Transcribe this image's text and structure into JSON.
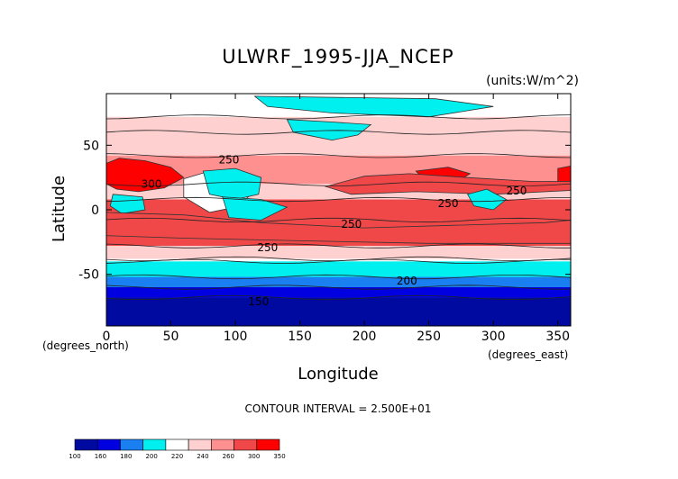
{
  "chart_data": {
    "type": "heatmap",
    "title": "ULWRF_1995-JJA_NCEP",
    "units_label": "(units:W/m^2)",
    "xlabel": "Longitude",
    "ylabel": "Latitude",
    "x_unit_label": "(degrees_east)",
    "y_unit_label": "(degrees_north)",
    "xlim": [
      0,
      360
    ],
    "ylim": [
      -90,
      90
    ],
    "x_ticks": [
      "0",
      "50",
      "100",
      "150",
      "200",
      "250",
      "300",
      "350"
    ],
    "y_ticks": [
      "-50",
      "0",
      "50"
    ],
    "contour_interval_text": "CONTOUR INTERVAL = 2.500E+01",
    "contour_labels": [
      {
        "text": "250",
        "lon": 95,
        "lat": 36
      },
      {
        "text": "300",
        "lon": 35,
        "lat": 17
      },
      {
        "text": "250",
        "lon": 318,
        "lat": 12
      },
      {
        "text": "250",
        "lon": 265,
        "lat": 2
      },
      {
        "text": "250",
        "lon": 190,
        "lat": -14
      },
      {
        "text": "250",
        "lon": 125,
        "lat": -32
      },
      {
        "text": "200",
        "lon": 233,
        "lat": -58
      },
      {
        "text": "150",
        "lon": 118,
        "lat": -74
      }
    ],
    "colorbar": {
      "labels": [
        "100",
        "160",
        "180",
        "200",
        "220",
        "240",
        "260",
        "300",
        "350"
      ],
      "colors": [
        "#000aa0",
        "#0000e0",
        "#1a7ff0",
        "#00f0f0",
        "#ffffff",
        "#ffd0d0",
        "#ff9090",
        "#f04848",
        "#ff0000"
      ]
    },
    "latitude_bands": [
      {
        "lat": [
          72,
          90
        ],
        "color": "#ffffff"
      },
      {
        "lat": [
          60,
          72
        ],
        "color": "#ffd0d0"
      },
      {
        "lat": [
          42,
          60
        ],
        "color": "#ffd0d0"
      },
      {
        "lat": [
          20,
          42
        ],
        "color": "#ff9090"
      },
      {
        "lat": [
          8,
          20
        ],
        "color": "#ffd0d0"
      },
      {
        "lat": [
          -8,
          8
        ],
        "color": "#f04848"
      },
      {
        "lat": [
          -28,
          -8
        ],
        "color": "#f04848"
      },
      {
        "lat": [
          -38,
          -28
        ],
        "color": "#ffd0d0"
      },
      {
        "lat": [
          -40,
          -38
        ],
        "color": "#ffffff"
      },
      {
        "lat": [
          -52,
          -40
        ],
        "color": "#00f0f0"
      },
      {
        "lat": [
          -60,
          -52
        ],
        "color": "#1a7ff0"
      },
      {
        "lat": [
          -68,
          -60
        ],
        "color": "#0000e0"
      },
      {
        "lat": [
          -90,
          -68
        ],
        "color": "#000aa0"
      }
    ],
    "regions": [
      {
        "name": "north-pacific-cool",
        "color": "#00f0f0",
        "pts": [
          [
            140,
            70
          ],
          [
            175,
            68
          ],
          [
            205,
            66
          ],
          [
            195,
            58
          ],
          [
            175,
            54
          ],
          [
            160,
            57
          ],
          [
            145,
            60
          ]
        ]
      },
      {
        "name": "arctic-cyan",
        "color": "#00f0f0",
        "pts": [
          [
            115,
            88
          ],
          [
            255,
            86
          ],
          [
            300,
            80
          ],
          [
            250,
            72
          ],
          [
            175,
            75
          ],
          [
            125,
            80
          ]
        ]
      },
      {
        "name": "sahara-hot",
        "color": "#ff0000",
        "pts": [
          [
            0,
            36
          ],
          [
            10,
            40
          ],
          [
            30,
            38
          ],
          [
            50,
            33
          ],
          [
            60,
            25
          ],
          [
            45,
            17
          ],
          [
            25,
            14
          ],
          [
            8,
            16
          ],
          [
            0,
            20
          ]
        ]
      },
      {
        "name": "hot-n-america",
        "color": "#ff0000",
        "pts": [
          [
            240,
            30
          ],
          [
            265,
            33
          ],
          [
            282,
            28
          ],
          [
            272,
            22
          ],
          [
            250,
            20
          ]
        ]
      },
      {
        "name": "hot-east-asia",
        "color": "#ff0000",
        "pts": [
          [
            350,
            32
          ],
          [
            360,
            34
          ],
          [
            360,
            18
          ],
          [
            350,
            20
          ]
        ]
      },
      {
        "name": "nh-warm-band",
        "color": "#f04848",
        "pts": [
          [
            170,
            18
          ],
          [
            200,
            26
          ],
          [
            235,
            28
          ],
          [
            280,
            25
          ],
          [
            330,
            22
          ],
          [
            360,
            22
          ],
          [
            360,
            15
          ],
          [
            300,
            12
          ],
          [
            240,
            14
          ],
          [
            190,
            12
          ]
        ]
      },
      {
        "name": "monsoon-asia",
        "color": "#ffffff",
        "pts": [
          [
            60,
            24
          ],
          [
            80,
            30
          ],
          [
            100,
            25
          ],
          [
            110,
            10
          ],
          [
            100,
            2
          ],
          [
            80,
            -2
          ],
          [
            60,
            10
          ]
        ]
      },
      {
        "name": "tibet-cyan",
        "color": "#00f0f0",
        "pts": [
          [
            75,
            30
          ],
          [
            100,
            32
          ],
          [
            120,
            25
          ],
          [
            118,
            12
          ],
          [
            100,
            8
          ],
          [
            80,
            12
          ]
        ]
      },
      {
        "name": "indonesia-cyan",
        "color": "#00f0f0",
        "pts": [
          [
            90,
            10
          ],
          [
            120,
            8
          ],
          [
            140,
            2
          ],
          [
            120,
            -8
          ],
          [
            95,
            -6
          ]
        ]
      },
      {
        "name": "west-africa-cyan",
        "color": "#00f0f0",
        "pts": [
          [
            5,
            12
          ],
          [
            28,
            10
          ],
          [
            30,
            0
          ],
          [
            12,
            -3
          ],
          [
            3,
            3
          ]
        ]
      },
      {
        "name": "amazon-cyan",
        "color": "#00f0f0",
        "pts": [
          [
            280,
            12
          ],
          [
            295,
            16
          ],
          [
            310,
            8
          ],
          [
            300,
            0
          ],
          [
            285,
            3
          ]
        ]
      },
      {
        "name": "sh-warm-core",
        "color": "#f04848",
        "pts": [
          [
            0,
            -2
          ],
          [
            60,
            -4
          ],
          [
            120,
            -10
          ],
          [
            200,
            -14
          ],
          [
            270,
            -12
          ],
          [
            340,
            -10
          ],
          [
            360,
            -8
          ],
          [
            360,
            -26
          ],
          [
            250,
            -26
          ],
          [
            150,
            -24
          ],
          [
            60,
            -22
          ],
          [
            0,
            -20
          ]
        ]
      }
    ]
  }
}
